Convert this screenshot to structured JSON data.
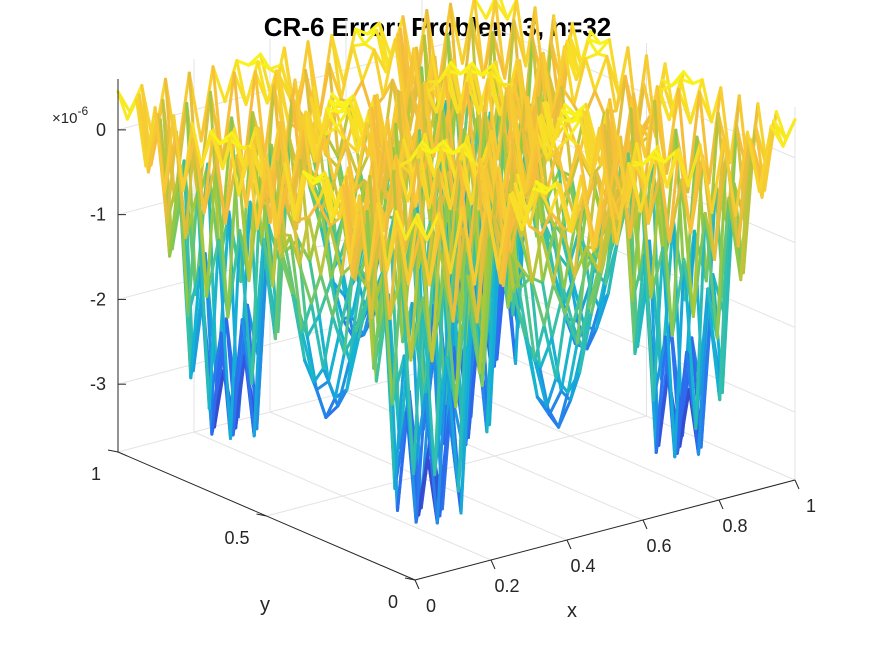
{
  "chart_data": {
    "type": "surface3d-mesh",
    "title": "CR-6 Error: Problem 3, n=32",
    "xlabel": "x",
    "ylabel": "y",
    "zlabel": "",
    "z_exponent_label": "×10",
    "z_exponent_power": "-6",
    "xlim": [
      0,
      1
    ],
    "ylim": [
      0,
      1
    ],
    "zlim": [
      -3.8,
      0.6
    ],
    "x_ticks": [
      0,
      0.2,
      0.4,
      0.6,
      0.8,
      1
    ],
    "x_tick_labels": [
      "0",
      "0.2",
      "0.4",
      "0.6",
      "0.8",
      "1"
    ],
    "y_ticks": [
      0,
      0.5,
      1
    ],
    "y_tick_labels": [
      "0",
      "0.5",
      "1"
    ],
    "z_ticks": [
      -3,
      -2,
      -1,
      0
    ],
    "z_tick_labels": [
      "-3",
      "-2",
      "-1",
      "0"
    ],
    "grid": true,
    "colormap": [
      "#3e26a8",
      "#2c6ff2",
      "#13b3d4",
      "#3fc39c",
      "#9fc93a",
      "#f6bc3c",
      "#f9fb15"
    ],
    "n": 32,
    "surface_note": "error surface: bumps of amplitude ~3.3e-6 on a 3x3 pattern with oscillation between grid nodes, z range about -3.5e-6 to 0.5e-6"
  }
}
